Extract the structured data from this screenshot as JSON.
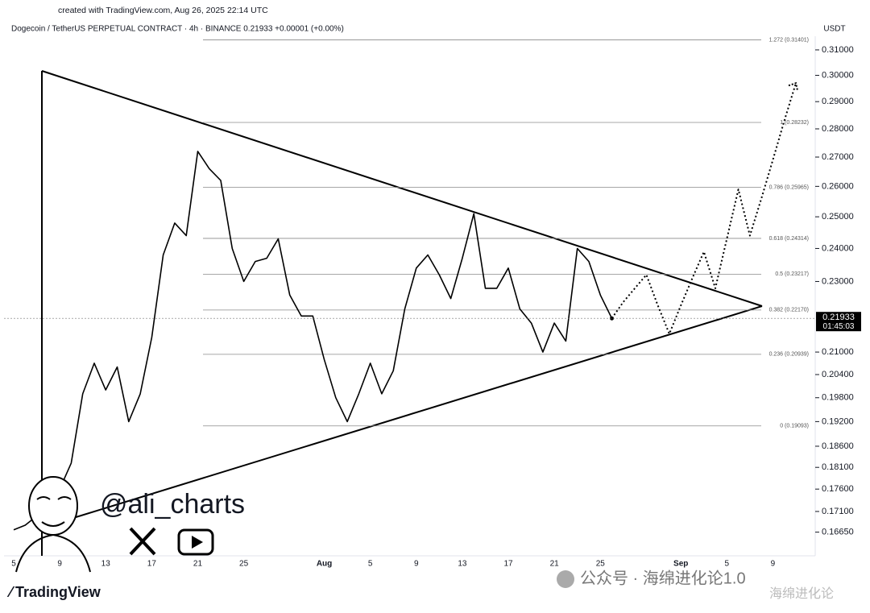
{
  "header": {
    "created": "created with TradingView.com, Aug 26, 2025 22:14 UTC",
    "symbol": "Dogecoin / TetherUS PERPETUAL CONTRACT · 4h · BINANCE  0.21933  +0.00001 (+0.00%)",
    "currency": "USDT"
  },
  "watermark": {
    "handle": "@ali_charts",
    "logo": "TradingView",
    "wechat": "公众号 · 海绵进化论1.0",
    "wechat_small": "海绵进化论"
  },
  "chart_data": {
    "type": "line",
    "log_scale": true,
    "categories": [
      "5",
      null,
      null,
      null,
      "9",
      null,
      null,
      null,
      "13",
      null,
      null,
      null,
      "17",
      null,
      null,
      null,
      "21",
      null,
      null,
      null,
      "25",
      null,
      null,
      null,
      null,
      null,
      null,
      "Aug",
      null,
      null,
      null,
      "5",
      null,
      null,
      null,
      "9",
      null,
      null,
      null,
      "13",
      null,
      null,
      null,
      "17",
      null,
      null,
      null,
      "21",
      null,
      null,
      null,
      "25",
      null,
      null,
      null,
      null,
      null,
      null,
      "Sep",
      null,
      null,
      null,
      "5",
      null,
      null,
      null,
      "9",
      null,
      null
    ],
    "series": [
      {
        "name": "Dogecoin / TetherUS",
        "color": "#000000",
        "style": "solid",
        "values": [
          0.167,
          0.168,
          0.17,
          0.172,
          0.176,
          0.182,
          0.199,
          0.207,
          0.2,
          0.206,
          0.192,
          0.199,
          0.214,
          0.238,
          0.248,
          0.244,
          0.272,
          0.266,
          0.262,
          0.24,
          0.23,
          0.236,
          0.237,
          0.243,
          0.226,
          0.22,
          0.22,
          0.208,
          0.198,
          0.192,
          0.199,
          0.207,
          0.199,
          0.205,
          0.222,
          0.234,
          0.238,
          0.232,
          0.225,
          0.237,
          0.251,
          0.228,
          0.228,
          0.234,
          0.222,
          0.218,
          0.21,
          0.218,
          0.213,
          0.24,
          0.236,
          0.226,
          0.21933,
          null,
          null,
          null,
          null,
          null,
          null,
          null,
          null,
          null,
          null,
          null,
          null,
          null,
          null,
          null,
          null
        ]
      },
      {
        "name": "Projection",
        "color": "#000000",
        "style": "dotted",
        "values": [
          null,
          null,
          null,
          null,
          null,
          null,
          null,
          null,
          null,
          null,
          null,
          null,
          null,
          null,
          null,
          null,
          null,
          null,
          null,
          null,
          null,
          null,
          null,
          null,
          null,
          null,
          null,
          null,
          null,
          null,
          null,
          null,
          null,
          null,
          null,
          null,
          null,
          null,
          null,
          null,
          null,
          null,
          null,
          null,
          null,
          null,
          null,
          null,
          null,
          null,
          null,
          null,
          0.21933,
          0.224,
          0.228,
          0.232,
          0.223,
          0.215,
          0.223,
          0.231,
          0.239,
          0.228,
          0.243,
          0.259,
          0.244,
          0.256,
          0.269,
          0.283,
          0.297
        ]
      }
    ],
    "ylim": [
      0.1615,
      0.3155
    ],
    "yticks": [
      {
        "value": 0.31,
        "label": "0.31000"
      },
      {
        "value": 0.3,
        "label": "0.30000"
      },
      {
        "value": 0.29,
        "label": "0.29000"
      },
      {
        "value": 0.28,
        "label": "0.28000"
      },
      {
        "value": 0.27,
        "label": "0.27000"
      },
      {
        "value": 0.26,
        "label": "0.26000"
      },
      {
        "value": 0.25,
        "label": "0.25000"
      },
      {
        "value": 0.24,
        "label": "0.24000"
      },
      {
        "value": 0.23,
        "label": "0.23000"
      },
      {
        "value": 0.21,
        "label": "0.21000"
      },
      {
        "value": 0.204,
        "label": "0.20400"
      },
      {
        "value": 0.198,
        "label": "0.19800"
      },
      {
        "value": 0.192,
        "label": "0.19200"
      },
      {
        "value": 0.186,
        "label": "0.18600"
      },
      {
        "value": 0.181,
        "label": "0.18100"
      },
      {
        "value": 0.176,
        "label": "0.17600"
      },
      {
        "value": 0.171,
        "label": "0.17100"
      },
      {
        "value": 0.1665,
        "label": "0.16650"
      }
    ],
    "fib_levels": [
      {
        "value": 0.31401,
        "label": "1.272 (0.31401)"
      },
      {
        "value": 0.28232,
        "label": "1 (0.28232)"
      },
      {
        "value": 0.25965,
        "label": "0.786 (0.25965)"
      },
      {
        "value": 0.24314,
        "label": "0.618 (0.24314)"
      },
      {
        "value": 0.23217,
        "label": "0.5 (0.23217)"
      },
      {
        "value": 0.2217,
        "label": "0.382 (0.22170)"
      },
      {
        "value": 0.20939,
        "label": "0.236 (0.20939)"
      },
      {
        "value": 0.19093,
        "label": "0 (0.19093)"
      }
    ],
    "fib_color": "#8a8a8a",
    "last_price": {
      "value": 0.21933,
      "label": "0.21933"
    },
    "countdown": "01:45:03"
  }
}
